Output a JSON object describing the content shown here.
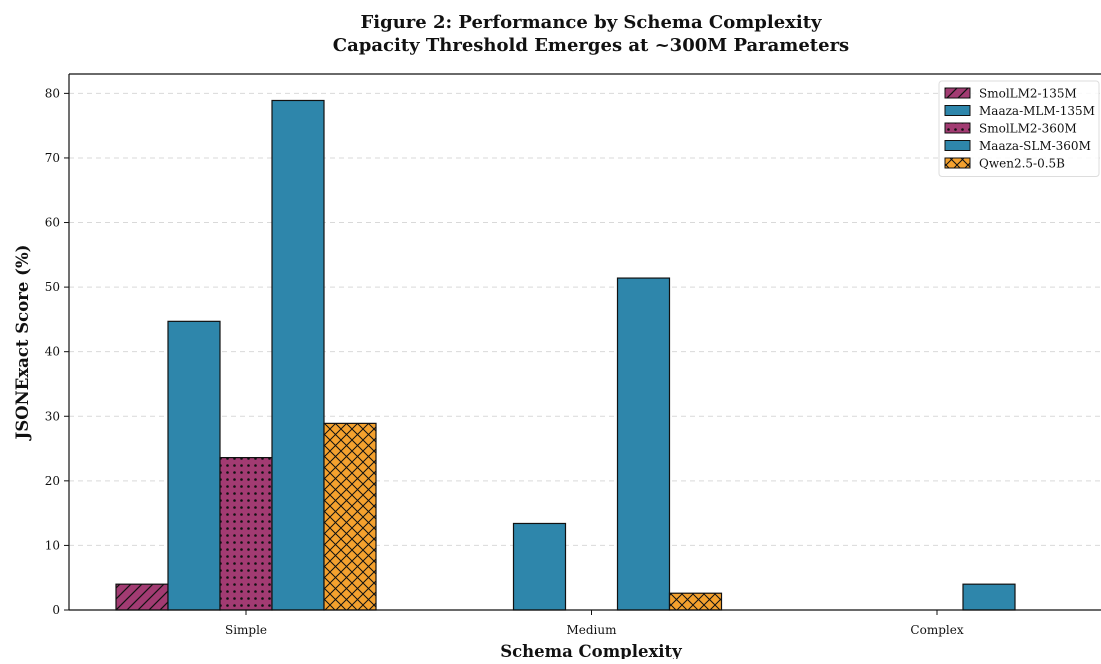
{
  "chart_data": {
    "type": "bar",
    "title": "Figure 2: Performance by Schema Complexity",
    "subtitle": "Capacity Threshold Emerges at ~300M Parameters",
    "xlabel": "Schema Complexity",
    "ylabel": "JSONExact Score (%)",
    "categories": [
      "Simple",
      "Medium",
      "Complex"
    ],
    "ylim": [
      0,
      83
    ],
    "yticks": [
      0,
      10,
      20,
      30,
      40,
      50,
      60,
      70,
      80
    ],
    "grid": "y-dashed",
    "legend_position": "top-right",
    "series": [
      {
        "name": "SmolLM2-135M",
        "values": [
          4.0,
          0,
          0
        ],
        "color": "#A23B72",
        "hatch": "diagonal"
      },
      {
        "name": "Maaza-MLM-135M",
        "values": [
          44.7,
          13.4,
          0
        ],
        "color": "#2E86AB",
        "hatch": "none"
      },
      {
        "name": "SmolLM2-360M",
        "values": [
          23.6,
          0,
          0
        ],
        "color": "#A23B72",
        "hatch": "dots"
      },
      {
        "name": "Maaza-SLM-360M",
        "values": [
          78.9,
          51.4,
          4.0
        ],
        "color": "#2E86AB",
        "hatch": "none"
      },
      {
        "name": "Qwen2.5-0.5B",
        "values": [
          28.9,
          2.6,
          0
        ],
        "color": "#F4A12E",
        "hatch": "crosshatch"
      }
    ]
  }
}
